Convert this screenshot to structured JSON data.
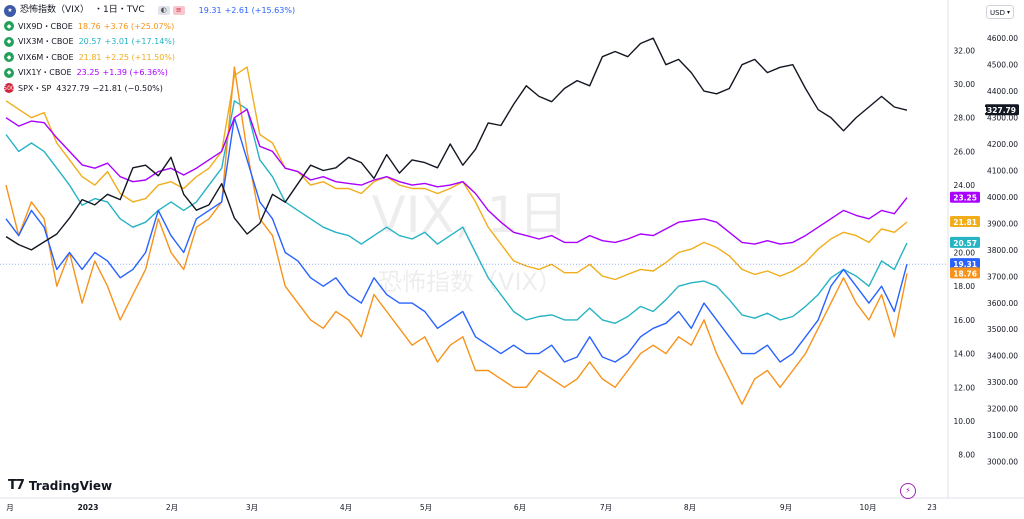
{
  "main_title": {
    "flag_icon": "us-flag-icon",
    "name": "恐怖指数（VIX）",
    "interval": "・1日・TVC",
    "value": "19.31",
    "change": "+2.61 (+15.63%)",
    "color": "#2962ff"
  },
  "legend": [
    {
      "symbol": "VIX9D・CBOE",
      "value": "18.76",
      "change": "+3.76 (+25.07%)",
      "color": "#f7931a"
    },
    {
      "symbol": "VIX3M・CBOE",
      "value": "20.57",
      "change": "+3.01 (+17.14%)",
      "color": "#26b3c4"
    },
    {
      "symbol": "VIX6M・CBOE",
      "value": "21.81",
      "change": "+2.25 (+11.50%)",
      "color": "#f2ad1b"
    },
    {
      "symbol": "VIX1Y・CBOE",
      "value": "23.25",
      "change": "+1.39 (+6.36%)",
      "color": "#aa00ff"
    },
    {
      "symbol": "SPX・SP",
      "value": "4327.79",
      "change": "−21.81 (−0.50%)",
      "color": "#131722",
      "badge": "500"
    }
  ],
  "currency": "USD",
  "watermark": {
    "main": "VIX, 1日",
    "sub": "恐怖指数（VIX）"
  },
  "logo_text": "TradingView",
  "chart_data": {
    "type": "line",
    "x": [
      "2022-12-20",
      "2022-12-23",
      "2022-12-28",
      "2023-01-03",
      "2023-01-06",
      "2023-01-11",
      "2023-01-16",
      "2023-01-20",
      "2023-01-25",
      "2023-01-30",
      "2023-02-02",
      "2023-02-07",
      "2023-02-10",
      "2023-02-15",
      "2023-02-21",
      "2023-02-24",
      "2023-03-01",
      "2023-03-06",
      "2023-03-09",
      "2023-03-13",
      "2023-03-16",
      "2023-03-21",
      "2023-03-24",
      "2023-03-29",
      "2023-04-03",
      "2023-04-06",
      "2023-04-12",
      "2023-04-17",
      "2023-04-20",
      "2023-04-25",
      "2023-04-28",
      "2023-05-03",
      "2023-05-08",
      "2023-05-11",
      "2023-05-16",
      "2023-05-19",
      "2023-05-24",
      "2023-05-30",
      "2023-06-02",
      "2023-06-07",
      "2023-06-12",
      "2023-06-15",
      "2023-06-21",
      "2023-06-26",
      "2023-06-29",
      "2023-07-05",
      "2023-07-10",
      "2023-07-13",
      "2023-07-18",
      "2023-07-21",
      "2023-07-26",
      "2023-07-31",
      "2023-08-03",
      "2023-08-08",
      "2023-08-11",
      "2023-08-16",
      "2023-08-21",
      "2023-08-24",
      "2023-08-29",
      "2023-09-01",
      "2023-09-07",
      "2023-09-12",
      "2023-09-15",
      "2023-09-20",
      "2023-09-25",
      "2023-09-28",
      "2023-10-03",
      "2023-10-06",
      "2023-10-11",
      "2023-10-16",
      "2023-10-19",
      "2023-10-23"
    ],
    "y_left_ticks": [
      8,
      10,
      12,
      14,
      16,
      18,
      20,
      22,
      24,
      26,
      28,
      30,
      32
    ],
    "y_right_ticks": [
      3000,
      3100,
      3200,
      3300,
      3400,
      3500,
      3600,
      3700,
      3800,
      3900,
      4000,
      4100,
      4200,
      4300,
      4400,
      4500,
      4600
    ],
    "ylim_left": [
      6.5,
      33.5
    ],
    "ylim_right": [
      2930,
      4650
    ],
    "x_tick_labels": [
      "月",
      "2023",
      "2月",
      "3月",
      "4月",
      "5月",
      "6月",
      "7月",
      "8月",
      "9月",
      "10月",
      "23"
    ],
    "series": [
      {
        "name": "VIX6M・CBOE",
        "color": "#f2ad1b",
        "axis": "left",
        "values": [
          29.0,
          28.5,
          28.0,
          28.3,
          26.5,
          25.5,
          24.5,
          24.0,
          24.8,
          23.5,
          23.0,
          23.2,
          24.0,
          24.2,
          23.8,
          24.5,
          25.0,
          26.0,
          30.5,
          31.0,
          27.0,
          26.5,
          25.0,
          24.8,
          24.0,
          24.2,
          23.8,
          23.8,
          23.5,
          24.2,
          24.5,
          24.0,
          23.8,
          23.8,
          23.5,
          23.8,
          24.2,
          23.0,
          21.5,
          20.5,
          19.5,
          19.2,
          19.0,
          19.3,
          18.8,
          18.8,
          19.3,
          18.6,
          18.4,
          18.7,
          19.0,
          18.9,
          19.4,
          20.0,
          20.2,
          20.6,
          20.3,
          19.8,
          19.0,
          18.7,
          18.9,
          18.6,
          18.9,
          19.4,
          20.2,
          20.8,
          21.2,
          21.0,
          20.6,
          21.4,
          21.2,
          21.81
        ]
      },
      {
        "name": "VIX3M・CBOE",
        "color": "#26b3c4",
        "axis": "left",
        "values": [
          27.0,
          26.0,
          26.5,
          26.0,
          25.0,
          24.0,
          22.8,
          23.2,
          23.0,
          22.0,
          21.5,
          21.8,
          22.5,
          23.0,
          22.5,
          23.0,
          24.0,
          25.0,
          29.0,
          28.5,
          25.5,
          24.5,
          23.0,
          22.5,
          22.0,
          21.5,
          21.2,
          21.0,
          20.5,
          21.0,
          21.5,
          21.0,
          20.8,
          21.2,
          20.5,
          21.0,
          21.5,
          20.0,
          18.5,
          17.5,
          16.5,
          16.0,
          16.2,
          16.3,
          16.0,
          16.0,
          16.7,
          16.0,
          15.8,
          16.2,
          16.8,
          16.5,
          17.2,
          18.0,
          18.2,
          18.3,
          18.0,
          17.2,
          16.3,
          16.1,
          16.4,
          16.0,
          16.2,
          16.8,
          17.5,
          18.5,
          19.0,
          18.6,
          18.0,
          19.5,
          19.0,
          20.57
        ]
      },
      {
        "name": "VIX9D・CBOE",
        "color": "#f7931a",
        "axis": "left",
        "values": [
          24.0,
          21.0,
          23.0,
          22.0,
          18.0,
          20.0,
          17.0,
          19.5,
          18.0,
          16.0,
          17.5,
          19.0,
          22.0,
          20.0,
          19.0,
          21.5,
          22.0,
          23.0,
          31.0,
          26.0,
          22.0,
          21.0,
          18.0,
          17.0,
          16.0,
          15.5,
          16.5,
          16.0,
          15.0,
          17.5,
          16.5,
          15.5,
          14.5,
          15.0,
          13.5,
          14.5,
          15.0,
          13.0,
          13.0,
          12.5,
          12.0,
          12.0,
          13.0,
          12.5,
          12.0,
          12.5,
          13.5,
          12.5,
          12.0,
          13.0,
          14.0,
          14.5,
          14.0,
          15.0,
          14.5,
          16.0,
          14.0,
          12.5,
          11.0,
          12.5,
          13.0,
          12.0,
          13.0,
          14.0,
          15.5,
          17.0,
          18.5,
          17.0,
          16.0,
          17.5,
          15.0,
          18.76
        ]
      },
      {
        "name": "恐怖指数（VIX）",
        "color": "#2962ff",
        "axis": "left",
        "values": [
          22.0,
          21.0,
          22.5,
          21.5,
          19.0,
          20.0,
          19.0,
          20.0,
          19.5,
          18.5,
          19.0,
          20.0,
          22.5,
          21.0,
          20.0,
          22.0,
          22.5,
          23.0,
          28.0,
          25.5,
          23.0,
          22.0,
          20.0,
          19.5,
          18.5,
          18.0,
          18.5,
          17.5,
          17.0,
          18.5,
          17.5,
          17.0,
          17.0,
          16.5,
          15.5,
          16.0,
          16.5,
          15.0,
          14.5,
          14.0,
          14.5,
          14.0,
          14.0,
          14.5,
          13.5,
          13.8,
          15.0,
          13.8,
          13.5,
          14.0,
          15.0,
          15.5,
          15.8,
          16.5,
          15.5,
          17.0,
          16.0,
          15.0,
          14.0,
          14.0,
          14.5,
          13.5,
          14.0,
          15.0,
          16.0,
          18.0,
          19.0,
          18.0,
          17.0,
          18.0,
          16.5,
          19.31
        ]
      },
      {
        "name": "VIX1Y・CBOE",
        "color": "#aa00ff",
        "axis": "left",
        "values": [
          28.0,
          27.5,
          27.8,
          27.7,
          26.8,
          26.0,
          25.2,
          25.0,
          25.3,
          24.5,
          24.2,
          24.3,
          24.8,
          25.0,
          24.6,
          25.0,
          25.5,
          26.0,
          28.0,
          28.5,
          26.3,
          26.0,
          25.0,
          24.8,
          24.3,
          24.5,
          24.2,
          24.1,
          24.0,
          24.3,
          24.5,
          24.2,
          24.0,
          24.1,
          23.9,
          24.0,
          24.2,
          23.5,
          22.5,
          21.8,
          21.2,
          21.0,
          20.8,
          21.0,
          20.6,
          20.6,
          21.0,
          20.7,
          20.6,
          20.8,
          21.1,
          21.0,
          21.4,
          21.8,
          21.9,
          22.0,
          21.8,
          21.2,
          20.6,
          20.5,
          20.7,
          20.5,
          20.6,
          21.0,
          21.5,
          22.0,
          22.5,
          22.2,
          22.0,
          22.5,
          22.3,
          23.25
        ]
      },
      {
        "name": "SPX・SP",
        "color": "#131722",
        "axis": "right",
        "values": [
          3850,
          3820,
          3800,
          3830,
          3860,
          3920,
          3990,
          3970,
          4010,
          3990,
          4110,
          4120,
          4080,
          4150,
          4010,
          3950,
          3970,
          4050,
          3920,
          3860,
          3900,
          4010,
          3980,
          4050,
          4120,
          4100,
          4110,
          4150,
          4130,
          4070,
          4160,
          4090,
          4140,
          4130,
          4110,
          4200,
          4120,
          4180,
          4280,
          4270,
          4350,
          4420,
          4380,
          4360,
          4410,
          4440,
          4420,
          4530,
          4550,
          4530,
          4580,
          4600,
          4500,
          4520,
          4470,
          4400,
          4390,
          4410,
          4500,
          4520,
          4470,
          4490,
          4500,
          4410,
          4330,
          4300,
          4250,
          4300,
          4340,
          4380,
          4340,
          4327.79
        ]
      }
    ],
    "price_labels": [
      {
        "text": "4327.79",
        "value": 4327.79,
        "axis": "right",
        "bg": "#131722"
      },
      {
        "text": "23.25",
        "value": 23.25,
        "axis": "left",
        "bg": "#aa00ff"
      },
      {
        "text": "21.81",
        "value": 21.81,
        "axis": "left",
        "bg": "#f2ad1b"
      },
      {
        "text": "20.57",
        "value": 20.57,
        "axis": "left",
        "bg": "#26b3c4"
      },
      {
        "text": "19.31",
        "value": 19.31,
        "axis": "left",
        "bg": "#2962ff"
      },
      {
        "text": "18.76",
        "value": 18.76,
        "axis": "left",
        "bg": "#f7931a"
      }
    ],
    "grid": false
  }
}
